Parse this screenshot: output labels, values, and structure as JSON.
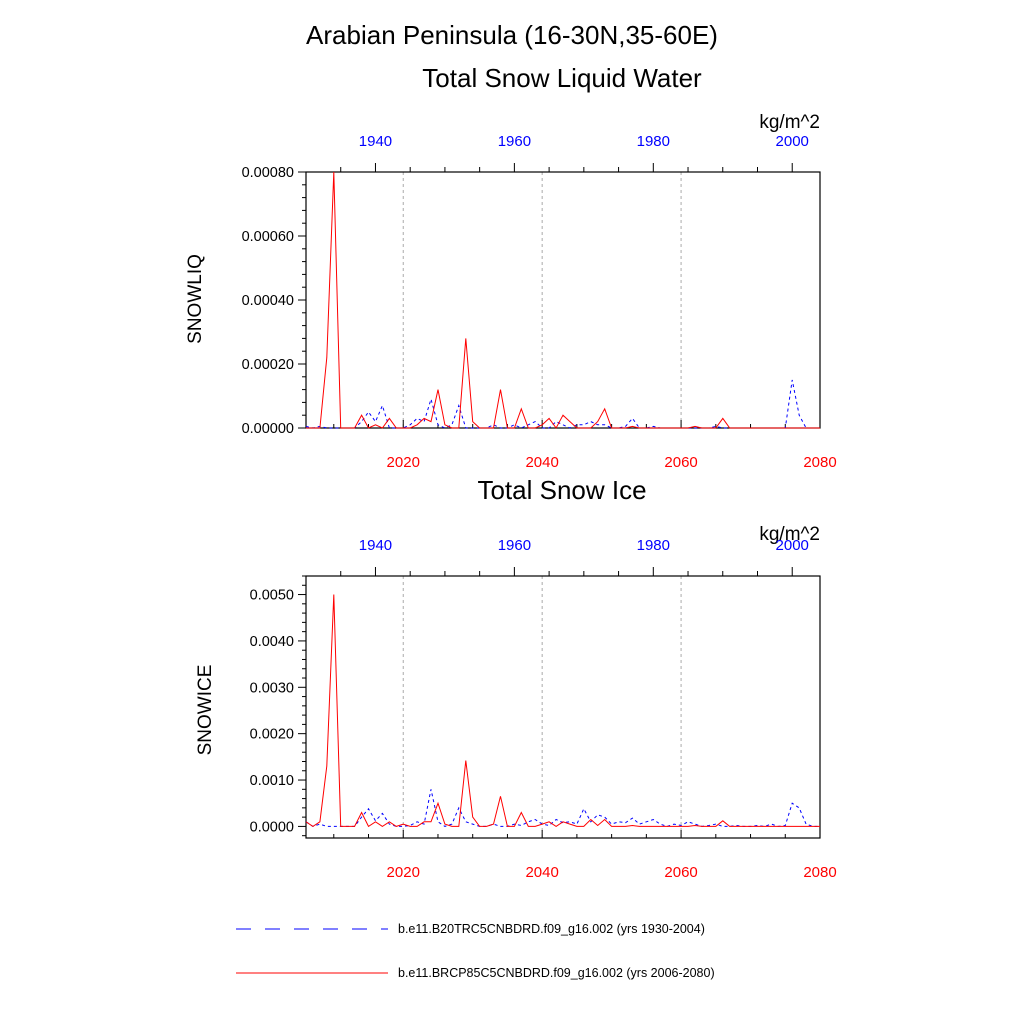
{
  "figure": {
    "title": "Arabian Peninsula (16-30N,35-60E)",
    "hist_color": "#0000ff",
    "rcp_color": "#ff0000",
    "grid_color": "#aaaaaa"
  },
  "legend": {
    "hist_label": "b.e11.B20TRC5CNBDRD.f09_g16.002 (yrs 1930-2004)",
    "rcp_label": "b.e11.BRCP85C5CNBDRD.f09_g16.002 (yrs 2006-2080)"
  },
  "chart_data": [
    {
      "type": "line",
      "title": "Total Snow Liquid Water",
      "ylabel": "SNOWLIQ",
      "units": "kg/m^2",
      "ylim": [
        0,
        0.0008
      ],
      "yticks": [
        "0.00000",
        "0.00020",
        "0.00040",
        "0.00060",
        "0.00080"
      ],
      "ytick_values": [
        0,
        0.0002,
        0.0004,
        0.0006,
        0.0008
      ],
      "bottom_axis": {
        "range": [
          2006,
          2080
        ],
        "ticks": [
          "2020",
          "2040",
          "2060",
          "2080"
        ],
        "tick_values": [
          2020,
          2040,
          2060,
          2080
        ]
      },
      "top_axis": {
        "range": [
          1930,
          2004
        ],
        "ticks": [
          "1940",
          "1960",
          "1980",
          "2000"
        ],
        "tick_values": [
          1940,
          1960,
          1980,
          2000
        ]
      },
      "grid_x": [
        2020,
        2040,
        2060
      ],
      "series": [
        {
          "name": "b.e11.B20TRC5CNBDRD.f09_g16.002 (yrs 1930-2004)",
          "style": "dashed",
          "x_start": 1930,
          "values": [
            5e-06,
            0,
            5e-06,
            0,
            0,
            0,
            0,
            0,
            2e-05,
            5e-05,
            2e-05,
            7e-05,
            0,
            0,
            0,
            1e-05,
            3e-05,
            2e-05,
            9e-05,
            1e-05,
            0,
            1e-05,
            7e-05,
            0,
            0,
            0,
            0,
            1e-05,
            0,
            0,
            1e-05,
            0,
            1e-05,
            2e-05,
            0,
            0,
            2e-05,
            1e-05,
            0,
            1e-05,
            1e-05,
            2e-05,
            1e-05,
            1e-05,
            0,
            0,
            5e-06,
            3e-05,
            0,
            0,
            5e-06,
            0,
            0,
            0,
            0,
            0,
            0,
            0,
            0,
            5e-06,
            0,
            0,
            0,
            0,
            0,
            0,
            0,
            0,
            0,
            0,
            0.00015,
            4e-05,
            0,
            0,
            0
          ]
        },
        {
          "name": "b.e11.BRCP85C5CNBDRD.f09_g16.002 (yrs 2006-2080)",
          "style": "solid",
          "x_start": 2006,
          "values": [
            0,
            0,
            0,
            0.00022,
            0.0008,
            0,
            0,
            0,
            4e-05,
            0,
            1e-05,
            0,
            3e-05,
            0,
            0,
            0,
            1e-05,
            3e-05,
            2e-05,
            0.00012,
            1e-05,
            0,
            0,
            0.00028,
            2e-05,
            0,
            0,
            0,
            0.00012,
            0,
            0,
            6e-05,
            0,
            0,
            1e-05,
            3e-05,
            0,
            4e-05,
            2e-05,
            0,
            0,
            0,
            2e-05,
            6e-05,
            0,
            0,
            0,
            5e-06,
            0,
            0,
            0,
            0,
            0,
            0,
            0,
            0,
            5e-06,
            0,
            0,
            0,
            3e-05,
            0,
            0,
            0,
            0,
            0,
            0,
            0,
            0,
            0,
            0,
            0,
            0,
            0,
            0
          ]
        }
      ]
    },
    {
      "type": "line",
      "title": "Total Snow Ice",
      "ylabel": "SNOWICE",
      "units": "kg/m^2",
      "ylim": [
        -0.00025,
        0.0054
      ],
      "yticks": [
        "0.0000",
        "0.0010",
        "0.0020",
        "0.0030",
        "0.0040",
        "0.0050"
      ],
      "ytick_values": [
        0,
        0.001,
        0.002,
        0.003,
        0.004,
        0.005
      ],
      "bottom_axis": {
        "range": [
          2006,
          2080
        ],
        "ticks": [
          "2020",
          "2040",
          "2060",
          "2080"
        ],
        "tick_values": [
          2020,
          2040,
          2060,
          2080
        ]
      },
      "top_axis": {
        "range": [
          1930,
          2004
        ],
        "ticks": [
          "1940",
          "1960",
          "1980",
          "2000"
        ],
        "tick_values": [
          1940,
          1960,
          1980,
          2000
        ]
      },
      "grid_x": [
        2020,
        2040,
        2060
      ],
      "series": [
        {
          "name": "b.e11.B20TRC5CNBDRD.f09_g16.002 (yrs 1930-2004)",
          "style": "dashed",
          "x_start": 1930,
          "values": [
            0.0001,
            0,
            5e-05,
            0,
            0,
            0,
            0,
            0,
            0.0002,
            0.00038,
            0.00012,
            0.00028,
            5e-05,
            0,
            0,
            2e-05,
            0.0001,
            5e-05,
            0.0008,
            0.0001,
            0,
            5e-05,
            0.0004,
            0.0001,
            5e-05,
            0,
            0,
            5e-05,
            0,
            0,
            5e-05,
            2e-05,
            0.0001,
            0.00015,
            5e-05,
            2e-05,
            0.00015,
            8e-05,
            0.0001,
            5e-05,
            0.00038,
            0.0001,
            0.00025,
            0.0002,
            5e-05,
            0.0001,
            8e-05,
            0.00018,
            5e-05,
            0.0001,
            0.00015,
            5e-05,
            0,
            5e-05,
            2e-05,
            0.0001,
            5e-05,
            0,
            2e-05,
            5e-05,
            0,
            0,
            2e-05,
            0,
            0,
            2e-05,
            0,
            5e-05,
            0,
            2e-05,
            0.0005,
            0.0004,
            5e-05,
            0,
            0
          ]
        },
        {
          "name": "b.e11.BRCP85C5CNBDRD.f09_g16.002 (yrs 2006-2080)",
          "style": "solid",
          "x_start": 2006,
          "values": [
            0.0001,
            0,
            0.0001,
            0.0013,
            0.005,
            0,
            0,
            0,
            0.0003,
            0,
            0.0001,
            0,
            0.0001,
            0,
            5e-05,
            0,
            0,
            0.0001,
            0.0001,
            0.0005,
            5e-05,
            0,
            0,
            0.00142,
            0.0002,
            0,
            0,
            5e-05,
            0.00065,
            0,
            0,
            0.0003,
            0,
            0,
            5e-05,
            0.0001,
            0,
            0.0001,
            5e-05,
            0,
            0,
            0.00015,
            2e-05,
            0.00015,
            0,
            0,
            0,
            2e-05,
            0,
            0,
            0,
            0,
            0,
            0,
            0,
            0,
            2e-05,
            0,
            0,
            0,
            0.00012,
            0,
            0,
            0,
            0,
            0,
            0,
            0,
            0,
            0,
            0,
            0,
            0,
            0,
            0
          ]
        }
      ]
    }
  ]
}
